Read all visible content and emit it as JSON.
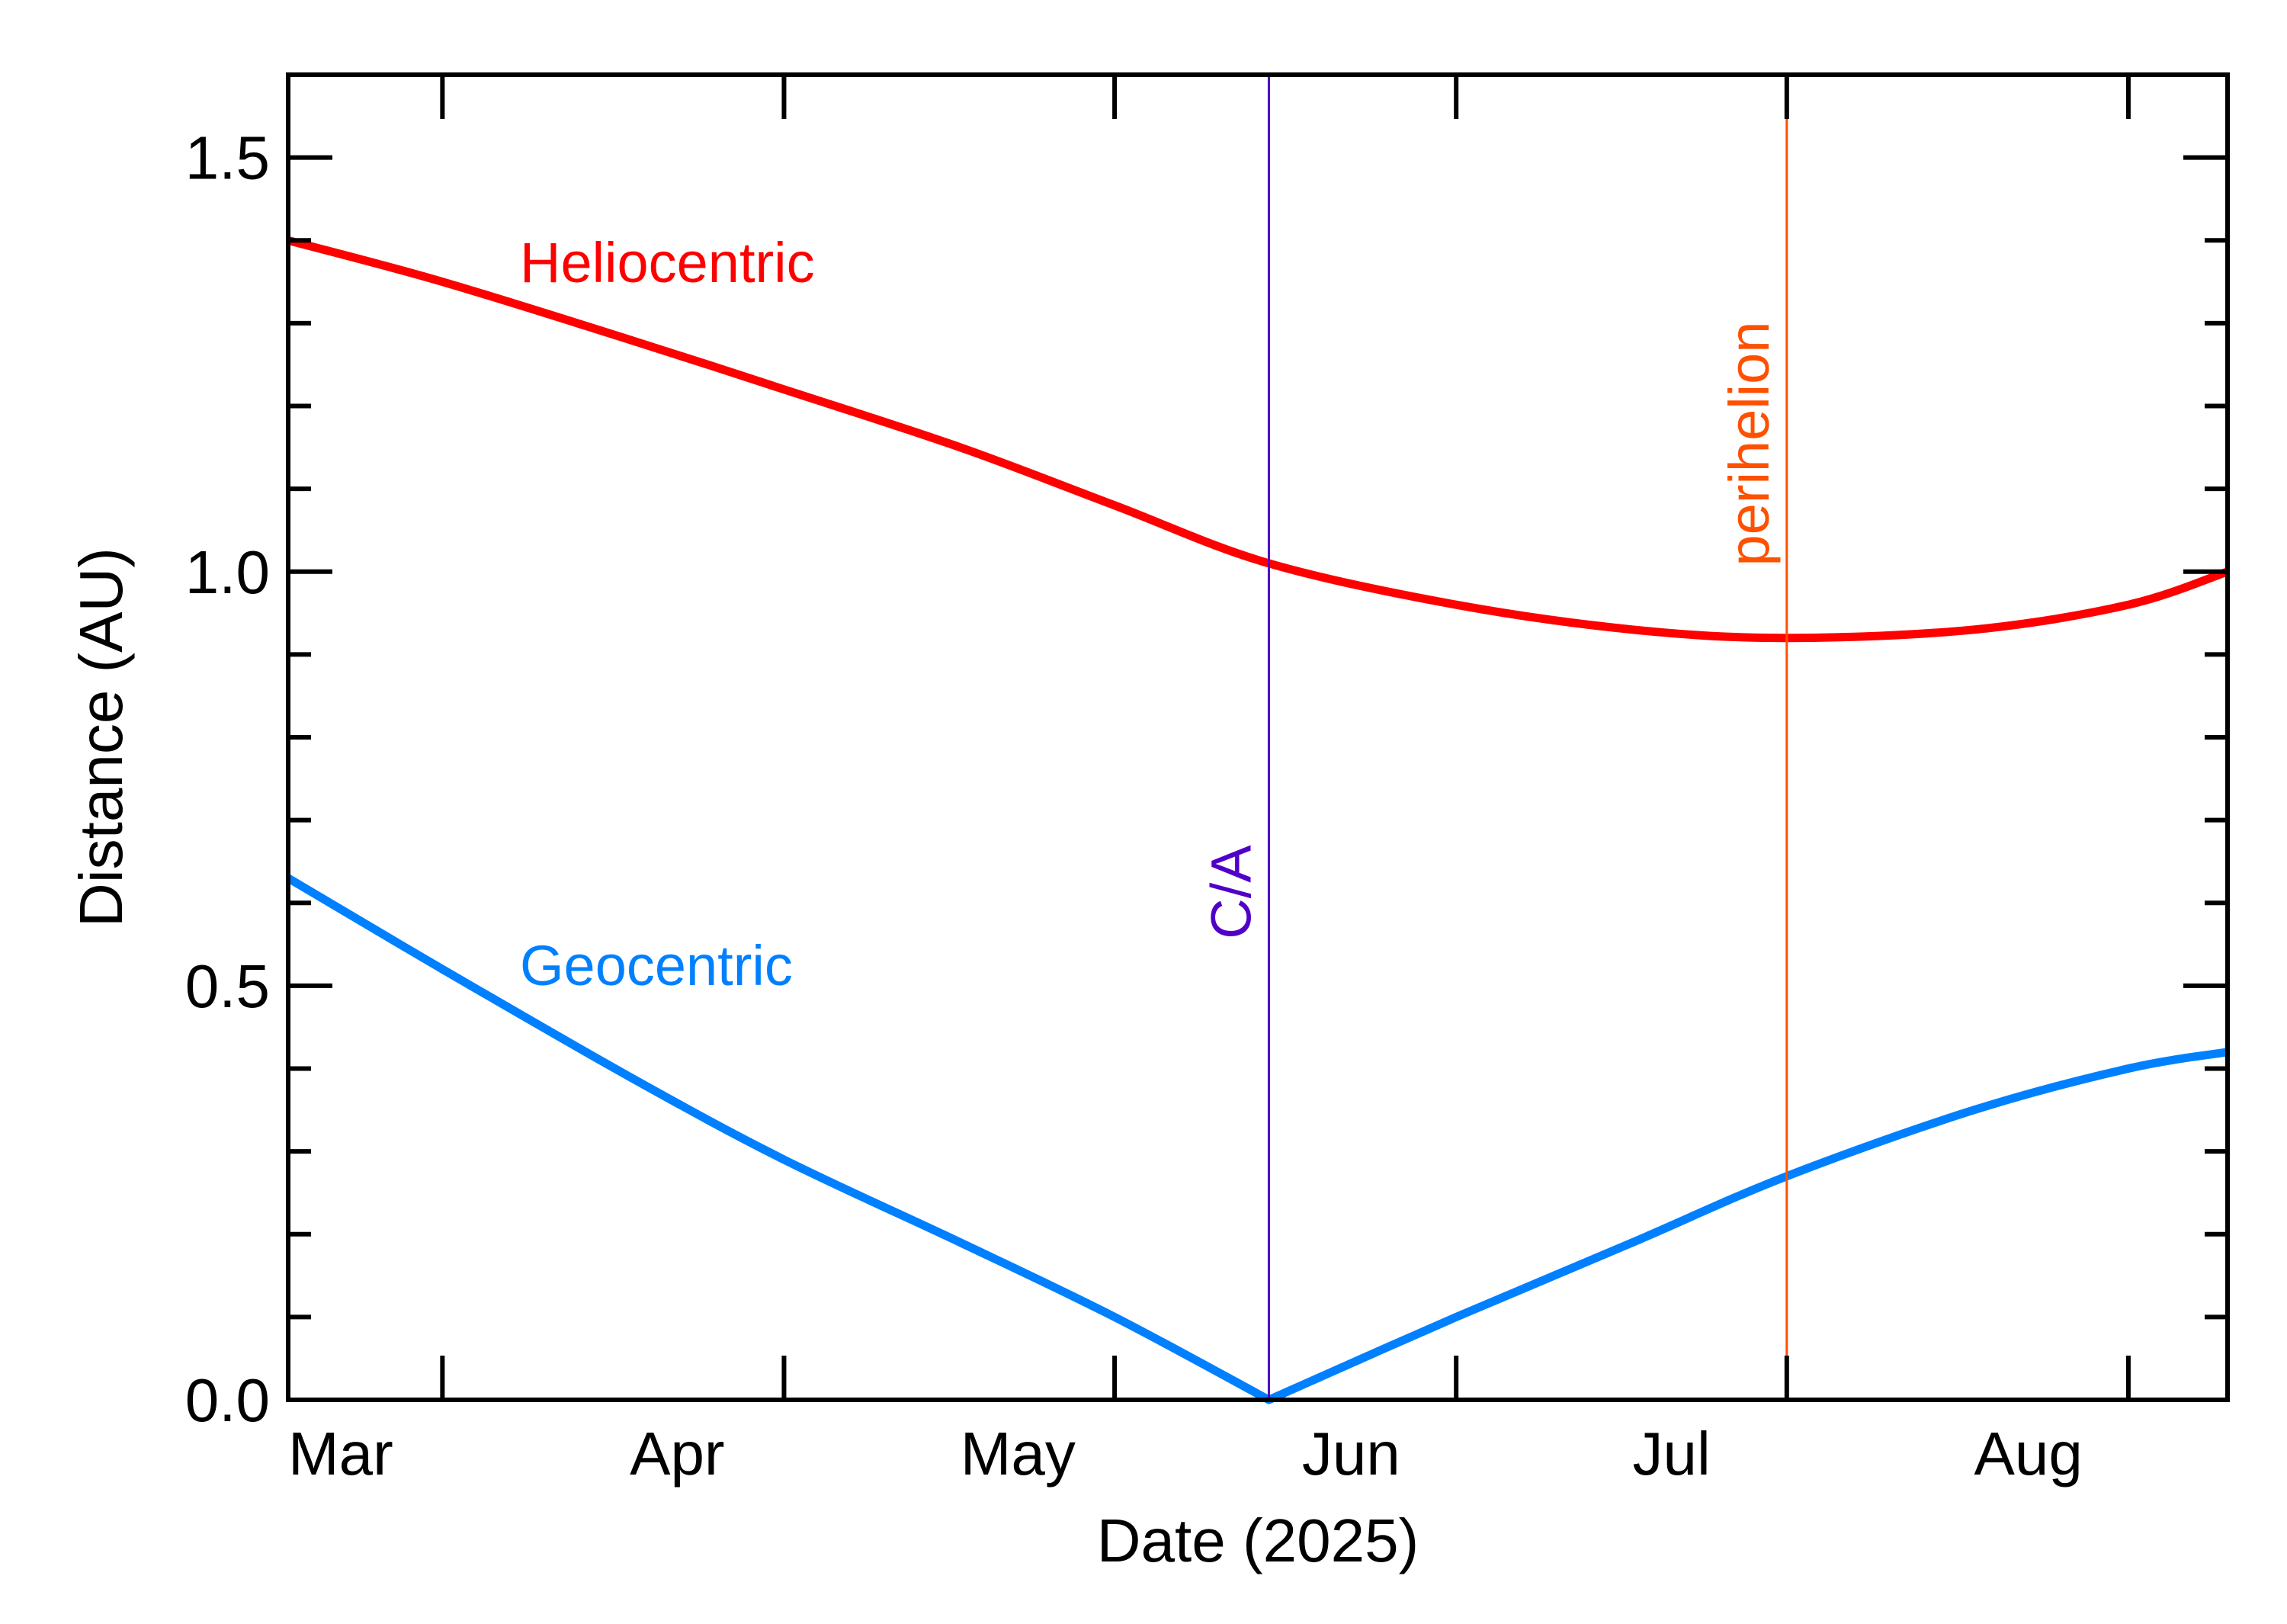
{
  "chart_data": {
    "type": "line",
    "title": "",
    "xlabel": "Date (2025)",
    "ylabel": "Distance (AU)",
    "ylim": [
      0.0,
      1.6
    ],
    "xlim": [
      "2025-03-01",
      "2025-08-24"
    ],
    "x_tick_labels": [
      {
        "date": "2025-03-01",
        "label": "Mar"
      },
      {
        "date": "2025-04-01",
        "label": "Apr"
      },
      {
        "date": "2025-05-01",
        "label": "May"
      },
      {
        "date": "2025-06-01",
        "label": "Jun"
      },
      {
        "date": "2025-07-01",
        "label": "Jul"
      },
      {
        "date": "2025-08-01",
        "label": "Aug"
      }
    ],
    "y_tick_labels": [
      {
        "value": 0.0,
        "label": "0.0"
      },
      {
        "value": 0.5,
        "label": "0.5"
      },
      {
        "value": 1.0,
        "label": "1.0"
      },
      {
        "value": 1.5,
        "label": "1.5"
      }
    ],
    "y_minor_step": 0.1,
    "grid": false,
    "series": [
      {
        "name": "Heliocentric",
        "color": "#ff0000",
        "x": [
          "2025-03-01",
          "2025-03-15",
          "2025-04-01",
          "2025-04-15",
          "2025-05-01",
          "2025-05-15",
          "2025-05-29",
          "2025-06-15",
          "2025-07-01",
          "2025-07-15",
          "2025-08-01",
          "2025-08-15",
          "2025-08-24"
        ],
        "y": [
          1.4,
          1.35,
          1.28,
          1.22,
          1.15,
          1.08,
          1.01,
          0.96,
          0.93,
          0.92,
          0.93,
          0.96,
          1.0
        ]
      },
      {
        "name": "Geocentric",
        "color": "#0080ff",
        "x": [
          "2025-03-01",
          "2025-03-15",
          "2025-04-01",
          "2025-04-15",
          "2025-05-01",
          "2025-05-15",
          "2025-05-29",
          "2025-06-15",
          "2025-07-01",
          "2025-07-15",
          "2025-08-01",
          "2025-08-15",
          "2025-08-24"
        ],
        "y": [
          0.63,
          0.52,
          0.39,
          0.29,
          0.19,
          0.1,
          0.0,
          0.1,
          0.19,
          0.27,
          0.35,
          0.4,
          0.42
        ]
      }
    ],
    "markers": [
      {
        "label": "C/A",
        "date": "2025-05-29",
        "color": "#5000c8"
      },
      {
        "label": "perihelion",
        "date": "2025-07-15",
        "color": "#ff5000"
      }
    ]
  }
}
